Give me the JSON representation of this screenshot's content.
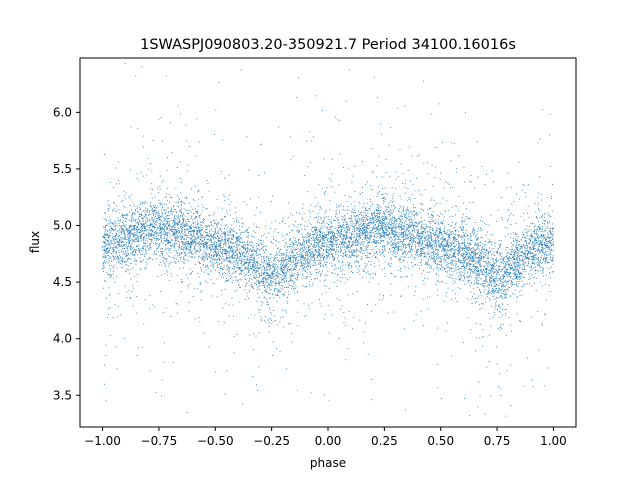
{
  "chart_data": {
    "type": "scatter",
    "title": "1SWASPJ090803.20-350921.7 Period 34100.16016s",
    "xlabel": "phase",
    "ylabel": "flux",
    "xlim": [
      -1.1,
      1.1
    ],
    "ylim": [
      3.22,
      6.48
    ],
    "x_ticks": [
      -1.0,
      -0.75,
      -0.5,
      -0.25,
      0.0,
      0.25,
      0.5,
      0.75,
      1.0
    ],
    "x_tick_labels": [
      "−1.00",
      "−0.75",
      "−0.50",
      "−0.25",
      "0.00",
      "0.25",
      "0.50",
      "0.75",
      "1.00"
    ],
    "y_ticks": [
      3.5,
      4.0,
      4.5,
      5.0,
      5.5,
      6.0
    ],
    "y_tick_labels": [
      "3.5",
      "4.0",
      "4.5",
      "5.0",
      "5.5",
      "6.0"
    ],
    "grid": false,
    "legend": "none",
    "point_color": "#1f77b4",
    "series": [
      {
        "x": [
          -1.0,
          -0.95,
          -0.9,
          -0.85,
          -0.8,
          -0.75,
          -0.7,
          -0.65,
          -0.6,
          -0.55,
          -0.5,
          -0.45,
          -0.4,
          -0.35,
          -0.3,
          -0.25,
          -0.2,
          -0.15,
          -0.1,
          -0.05,
          0.0,
          0.05,
          0.1,
          0.15,
          0.2,
          0.25,
          0.3,
          0.35,
          0.4,
          0.45,
          0.5,
          0.55,
          0.6,
          0.65,
          0.7,
          0.75,
          0.8,
          0.85,
          0.9,
          0.95,
          1.0
        ],
        "y": [
          4.83,
          4.86,
          4.89,
          4.93,
          4.96,
          4.97,
          4.96,
          4.93,
          4.9,
          4.86,
          4.82,
          4.79,
          4.75,
          4.7,
          4.62,
          4.55,
          4.6,
          4.7,
          4.78,
          4.82,
          4.83,
          4.86,
          4.89,
          4.93,
          4.96,
          4.97,
          4.96,
          4.93,
          4.9,
          4.86,
          4.82,
          4.79,
          4.75,
          4.7,
          4.62,
          4.55,
          4.6,
          4.7,
          4.78,
          4.82,
          4.83
        ]
      }
    ]
  }
}
